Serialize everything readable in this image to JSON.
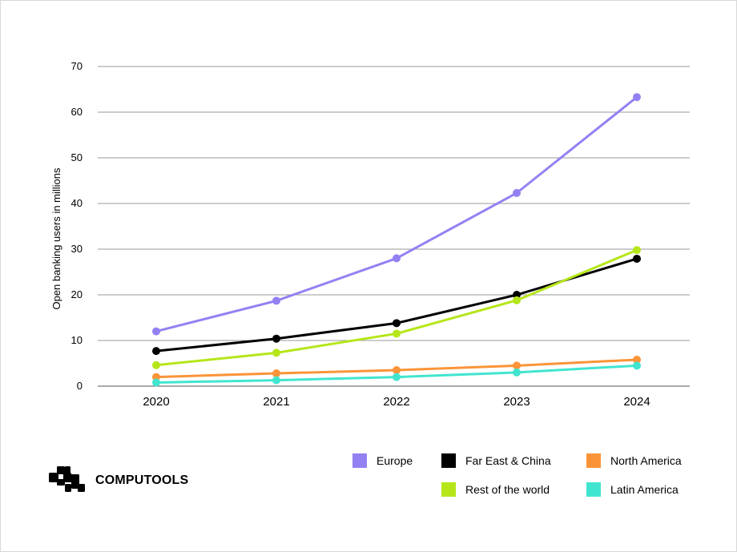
{
  "chart_data": {
    "type": "line",
    "ylabel": "Open banking users in millions",
    "xlabel": "",
    "categories": [
      "2020",
      "2021",
      "2022",
      "2023",
      "2024"
    ],
    "ylim": [
      0,
      70
    ],
    "yticks": [
      "0",
      "10",
      "20",
      "30",
      "40",
      "50",
      "60",
      "70"
    ],
    "grid": true,
    "legend_position": "bottom-right",
    "series": [
      {
        "name": "Europe",
        "color": "#9381F3",
        "values": [
          12,
          18.7,
          28,
          42.3,
          63.3
        ]
      },
      {
        "name": "Far East & China",
        "color": "#000000",
        "values": [
          7.7,
          10.4,
          13.8,
          20,
          27.9
        ]
      },
      {
        "name": "Rest of the world",
        "color": "#B6E61A",
        "values": [
          4.6,
          7.3,
          11.5,
          18.8,
          29.8
        ]
      },
      {
        "name": "North America",
        "color": "#FB9438",
        "values": [
          2,
          2.8,
          3.5,
          4.5,
          5.8
        ]
      },
      {
        "name": "Latin America",
        "color": "#41E5CF",
        "values": [
          0.8,
          1.3,
          2,
          3,
          4.5
        ]
      }
    ]
  },
  "legend": {
    "europe": "Europe",
    "far_east_china": "Far East & China",
    "north_america": "North America",
    "rest_of_world": "Rest of the world",
    "latin_america": "Latin America"
  },
  "brand": {
    "name": "COMPUTOOLS",
    "logo_icon": "computools-logo-icon"
  }
}
